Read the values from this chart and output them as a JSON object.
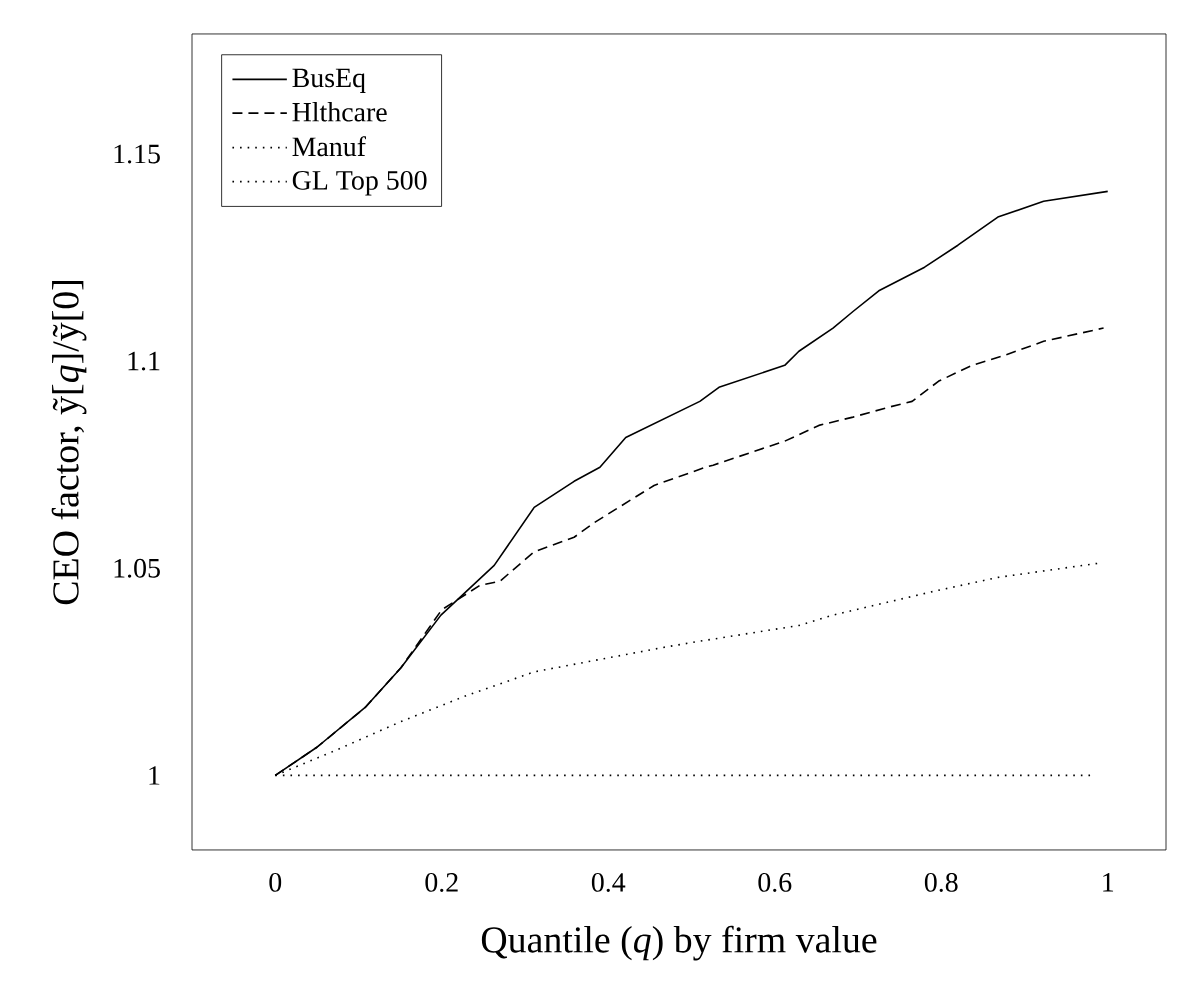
{
  "chart_data": {
    "type": "line",
    "xlabel": "Quantile (*q*) by firm value",
    "ylabel": "CEO factor, ỹ[*q*]/ỹ[0]",
    "xlim": [
      -0.1,
      1.07
    ],
    "ylim": [
      0.982,
      1.179
    ],
    "xticks": [
      0,
      0.2,
      0.4,
      0.6,
      0.8,
      1
    ],
    "yticks": [
      1,
      1.05,
      1.1,
      1.15
    ],
    "grid": false,
    "legend": "top left",
    "marker": "none",
    "series": [
      {
        "name": "BusEq",
        "color": "#000000",
        "line_style": "solid",
        "x": [
          0,
          0.05,
          0.108,
          0.151,
          0.199,
          0.263,
          0.311,
          0.359,
          0.39,
          0.421,
          0.51,
          0.533,
          0.612,
          0.629,
          0.67,
          0.694,
          0.725,
          0.78,
          0.82,
          0.868,
          0.923,
          1.0
        ],
        "values": [
          1.0,
          1.0068,
          1.0164,
          1.026,
          1.0387,
          1.0507,
          1.0647,
          1.071,
          1.0744,
          1.0816,
          1.0903,
          1.0937,
          1.099,
          1.1024,
          1.108,
          1.112,
          1.117,
          1.1227,
          1.128,
          1.1348,
          1.1386,
          1.141
        ]
      },
      {
        "name": "Hlthcare",
        "color": "#000000",
        "line_style": "dashed",
        "x": [
          0,
          0.05,
          0.108,
          0.151,
          0.2,
          0.246,
          0.27,
          0.311,
          0.359,
          0.383,
          0.455,
          0.517,
          0.526,
          0.612,
          0.653,
          0.694,
          0.737,
          0.765,
          0.797,
          0.837,
          0.876,
          0.923,
          0.995
        ],
        "values": [
          1.0,
          1.0068,
          1.0164,
          1.026,
          1.04,
          1.0459,
          1.0469,
          1.054,
          1.0575,
          1.061,
          1.07,
          1.0744,
          1.0749,
          1.0807,
          1.0845,
          1.0865,
          1.0889,
          1.0903,
          1.0952,
          1.099,
          1.1014,
          1.1048,
          1.108
        ]
      },
      {
        "name": "Manuf",
        "color": "#000000",
        "line_style": "dotted",
        "x": [
          0,
          0.072,
          0.151,
          0.23,
          0.311,
          0.469,
          0.51,
          0.629,
          0.67,
          0.79,
          0.868,
          0.988
        ],
        "values": [
          1.0,
          1.006,
          1.013,
          1.0193,
          1.025,
          1.031,
          1.0324,
          1.0362,
          1.0387,
          1.0444,
          1.0478,
          1.0512
        ]
      },
      {
        "name": "GL Top 500",
        "color": "#000000",
        "line_style": "dotted",
        "x": [
          0,
          0.25,
          0.5,
          0.75,
          0.98
        ],
        "values": [
          1.0,
          1.0,
          1.0,
          1.0,
          1.0
        ]
      }
    ]
  }
}
